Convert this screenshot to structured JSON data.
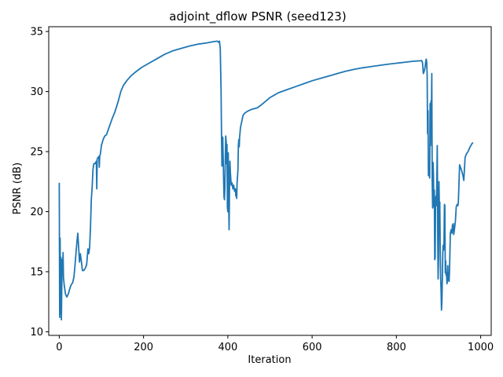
{
  "chart_data": {
    "type": "line",
    "title": "adjoint_dflow PSNR (seed123)",
    "xlabel": "Iteration",
    "ylabel": "PSNR (dB)",
    "xlim": [
      -25,
      1025
    ],
    "ylim": [
      9.7,
      35.4
    ],
    "xticks": [
      0,
      200,
      400,
      600,
      800,
      1000
    ],
    "yticks": [
      10,
      15,
      20,
      25,
      30,
      35
    ],
    "grid": false,
    "legend": "none",
    "series": [
      {
        "color": "#1f77b4",
        "points": [
          [
            0,
            22.4
          ],
          [
            1,
            11.2
          ],
          [
            2,
            17.8
          ],
          [
            3,
            11.5
          ],
          [
            4,
            16.2
          ],
          [
            5,
            11.0
          ],
          [
            6,
            13.8
          ],
          [
            7,
            16.0
          ],
          [
            8,
            15.0
          ],
          [
            9,
            16.6
          ],
          [
            10,
            14.5
          ],
          [
            12,
            13.8
          ],
          [
            15,
            13.1
          ],
          [
            18,
            12.9
          ],
          [
            22,
            13.2
          ],
          [
            25,
            13.6
          ],
          [
            28,
            13.9
          ],
          [
            32,
            14.1
          ],
          [
            35,
            14.6
          ],
          [
            38,
            15.8
          ],
          [
            40,
            16.7
          ],
          [
            42,
            17.5
          ],
          [
            44,
            18.2
          ],
          [
            46,
            17.0
          ],
          [
            48,
            15.8
          ],
          [
            50,
            16.5
          ],
          [
            52,
            16.0
          ],
          [
            55,
            15.1
          ],
          [
            58,
            15.1
          ],
          [
            62,
            15.3
          ],
          [
            65,
            15.6
          ],
          [
            68,
            16.9
          ],
          [
            70,
            16.5
          ],
          [
            72,
            17.0
          ],
          [
            74,
            18.6
          ],
          [
            76,
            21.0
          ],
          [
            78,
            22.0
          ],
          [
            80,
            23.5
          ],
          [
            82,
            24.0
          ],
          [
            85,
            24.0
          ],
          [
            88,
            24.2
          ],
          [
            89,
            21.9
          ],
          [
            90,
            24.4
          ],
          [
            92,
            24.5
          ],
          [
            94,
            24.6
          ],
          [
            95,
            23.7
          ],
          [
            96,
            24.6
          ],
          [
            98,
            24.9
          ],
          [
            100,
            25.5
          ],
          [
            104,
            26.0
          ],
          [
            108,
            26.3
          ],
          [
            112,
            26.4
          ],
          [
            118,
            27.0
          ],
          [
            125,
            27.7
          ],
          [
            132,
            28.3
          ],
          [
            140,
            29.2
          ],
          [
            146,
            30.0
          ],
          [
            152,
            30.5
          ],
          [
            160,
            30.9
          ],
          [
            170,
            31.3
          ],
          [
            180,
            31.6
          ],
          [
            195,
            32.0
          ],
          [
            210,
            32.3
          ],
          [
            230,
            32.7
          ],
          [
            250,
            33.1
          ],
          [
            270,
            33.4
          ],
          [
            290,
            33.6
          ],
          [
            310,
            33.8
          ],
          [
            330,
            33.95
          ],
          [
            350,
            34.05
          ],
          [
            365,
            34.15
          ],
          [
            375,
            34.2
          ],
          [
            378,
            34.1
          ],
          [
            380,
            34.2
          ],
          [
            382,
            33.6
          ],
          [
            384,
            30.0
          ],
          [
            385,
            26.5
          ],
          [
            386,
            23.8
          ],
          [
            387,
            25.0
          ],
          [
            388,
            26.2
          ],
          [
            390,
            22.6
          ],
          [
            391,
            21.2
          ],
          [
            392,
            21.0
          ],
          [
            393,
            22.0
          ],
          [
            394,
            24.5
          ],
          [
            395,
            26.3
          ],
          [
            396,
            25.9
          ],
          [
            397,
            24.0
          ],
          [
            398,
            25.6
          ],
          [
            399,
            20.4
          ],
          [
            400,
            20.0
          ],
          [
            401,
            24.9
          ],
          [
            402,
            20.8
          ],
          [
            403,
            18.5
          ],
          [
            404,
            22.0
          ],
          [
            405,
            24.2
          ],
          [
            406,
            23.3
          ],
          [
            408,
            22.2
          ],
          [
            410,
            22.4
          ],
          [
            412,
            21.9
          ],
          [
            414,
            22.2
          ],
          [
            416,
            21.7
          ],
          [
            418,
            21.9
          ],
          [
            419,
            21.3
          ],
          [
            420,
            21.8
          ],
          [
            421,
            21.1
          ],
          [
            422,
            22.4
          ],
          [
            424,
            23.5
          ],
          [
            425,
            25.5
          ],
          [
            426,
            26.0
          ],
          [
            427,
            25.4
          ],
          [
            428,
            26.2
          ],
          [
            430,
            27.0
          ],
          [
            433,
            27.5
          ],
          [
            436,
            28.0
          ],
          [
            440,
            28.2
          ],
          [
            446,
            28.35
          ],
          [
            455,
            28.5
          ],
          [
            465,
            28.6
          ],
          [
            470,
            28.65
          ],
          [
            478,
            28.85
          ],
          [
            490,
            29.2
          ],
          [
            500,
            29.5
          ],
          [
            510,
            29.7
          ],
          [
            520,
            29.9
          ],
          [
            540,
            30.15
          ],
          [
            560,
            30.4
          ],
          [
            580,
            30.65
          ],
          [
            600,
            30.9
          ],
          [
            620,
            31.1
          ],
          [
            640,
            31.3
          ],
          [
            660,
            31.5
          ],
          [
            680,
            31.7
          ],
          [
            700,
            31.85
          ],
          [
            720,
            31.98
          ],
          [
            740,
            32.08
          ],
          [
            760,
            32.18
          ],
          [
            780,
            32.28
          ],
          [
            800,
            32.36
          ],
          [
            820,
            32.44
          ],
          [
            840,
            32.52
          ],
          [
            855,
            32.56
          ],
          [
            860,
            32.58
          ],
          [
            862,
            32.4
          ],
          [
            864,
            31.5
          ],
          [
            866,
            31.7
          ],
          [
            868,
            32.0
          ],
          [
            870,
            32.6
          ],
          [
            871,
            32.7
          ],
          [
            872,
            32.4
          ],
          [
            873,
            31.4
          ],
          [
            874,
            26.5
          ],
          [
            875,
            28.4
          ],
          [
            876,
            23.0
          ],
          [
            877,
            24.0
          ],
          [
            878,
            23.2
          ],
          [
            879,
            22.8
          ],
          [
            880,
            29.0
          ],
          [
            881,
            25.5
          ],
          [
            882,
            29.2
          ],
          [
            883,
            28.0
          ],
          [
            884,
            31.5
          ],
          [
            885,
            22.5
          ],
          [
            886,
            20.3
          ],
          [
            887,
            24.1
          ],
          [
            888,
            23.0
          ],
          [
            889,
            20.4
          ],
          [
            890,
            21.8
          ],
          [
            891,
            16.0
          ],
          [
            892,
            16.2
          ],
          [
            893,
            21.0
          ],
          [
            894,
            21.3
          ],
          [
            895,
            20.5
          ],
          [
            896,
            22.8
          ],
          [
            897,
            25.5
          ],
          [
            898,
            18.5
          ],
          [
            899,
            14.4
          ],
          [
            900,
            16.2
          ],
          [
            901,
            22.5
          ],
          [
            902,
            20.3
          ],
          [
            903,
            20.8
          ],
          [
            904,
            17.0
          ],
          [
            905,
            14.5
          ],
          [
            906,
            13.5
          ],
          [
            907,
            11.8
          ],
          [
            908,
            12.5
          ],
          [
            909,
            14.3
          ],
          [
            910,
            16.5
          ],
          [
            911,
            17.2
          ],
          [
            912,
            16.8
          ],
          [
            913,
            17.5
          ],
          [
            914,
            20.6
          ],
          [
            915,
            20.5
          ],
          [
            916,
            14.9
          ],
          [
            917,
            15.9
          ],
          [
            918,
            14.7
          ],
          [
            919,
            14.9
          ],
          [
            920,
            14.0
          ],
          [
            921,
            14.2
          ],
          [
            922,
            15.5
          ],
          [
            923,
            14.3
          ],
          [
            924,
            14.5
          ],
          [
            925,
            14.2
          ],
          [
            926,
            15.0
          ],
          [
            927,
            16.5
          ],
          [
            928,
            18.2
          ],
          [
            930,
            18.5
          ],
          [
            932,
            18.2
          ],
          [
            933,
            18.9
          ],
          [
            934,
            18.9
          ],
          [
            935,
            19.0
          ],
          [
            936,
            18.1
          ],
          [
            937,
            18.3
          ],
          [
            938,
            18.6
          ],
          [
            940,
            19.2
          ],
          [
            942,
            20.4
          ],
          [
            944,
            20.6
          ],
          [
            946,
            20.5
          ],
          [
            947,
            20.8
          ],
          [
            948,
            21.8
          ],
          [
            950,
            23.9
          ],
          [
            952,
            23.7
          ],
          [
            955,
            23.4
          ],
          [
            958,
            23.0
          ],
          [
            960,
            22.6
          ],
          [
            963,
            24.5
          ],
          [
            966,
            24.8
          ],
          [
            970,
            25.0
          ],
          [
            975,
            25.4
          ],
          [
            980,
            25.7
          ],
          [
            982,
            25.75
          ]
        ]
      }
    ]
  }
}
